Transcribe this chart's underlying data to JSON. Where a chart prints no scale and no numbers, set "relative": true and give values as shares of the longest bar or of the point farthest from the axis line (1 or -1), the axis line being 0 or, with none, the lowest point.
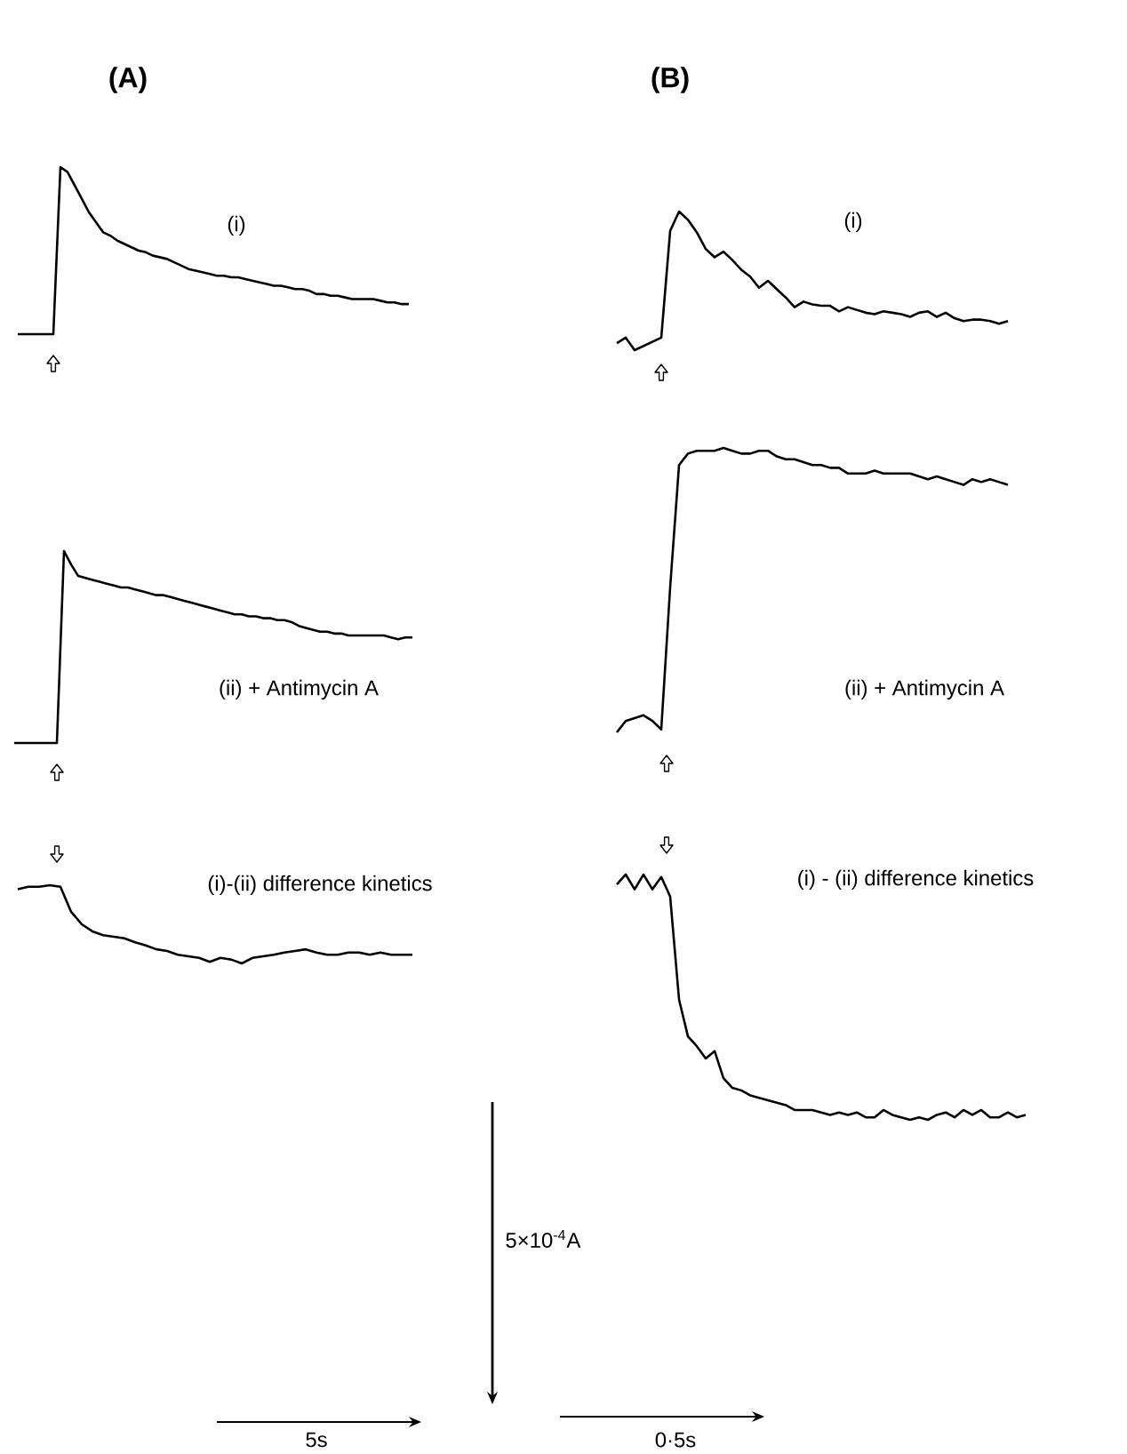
{
  "chart_data": [
    {
      "type": "line",
      "title": "(A)",
      "relative": true,
      "annotations": [
        "(i)"
      ],
      "categories": [
        null,
        null,
        null,
        null,
        null,
        null,
        null,
        null,
        null,
        null,
        null,
        null,
        null,
        null,
        null,
        null,
        null,
        null,
        null,
        null,
        null,
        null,
        null,
        null,
        null,
        null,
        null,
        null,
        null,
        null,
        null,
        null,
        null,
        null,
        null,
        null,
        null,
        null,
        null,
        null,
        null,
        null,
        null,
        null,
        null,
        null,
        null,
        null,
        null,
        null,
        null,
        null,
        null,
        null,
        null,
        null
      ],
      "series": [
        {
          "color": "#000000",
          "values": [
            0,
            0,
            0,
            0,
            0,
            0,
            1.0,
            0.97,
            0.89,
            0.81,
            0.73,
            0.67,
            0.61,
            0.59,
            0.56,
            0.54,
            0.52,
            0.5,
            0.49,
            0.47,
            0.46,
            0.45,
            0.43,
            0.41,
            0.39,
            0.38,
            0.37,
            0.36,
            0.35,
            0.35,
            0.34,
            0.34,
            0.33,
            0.32,
            0.31,
            0.3,
            0.29,
            0.29,
            0.28,
            0.27,
            0.27,
            0.26,
            0.24,
            0.24,
            0.23,
            0.23,
            0.22,
            0.21,
            0.21,
            0.21,
            0.21,
            0.2,
            0.19,
            0.19,
            0.18,
            0.18
          ]
        }
      ]
    },
    {
      "type": "line",
      "relative": true,
      "annotations": [
        "(ii) + Antimycin A"
      ],
      "categories": [
        null,
        null,
        null,
        null,
        null,
        null,
        null,
        null,
        null,
        null,
        null,
        null,
        null,
        null,
        null,
        null,
        null,
        null,
        null,
        null,
        null,
        null,
        null,
        null,
        null,
        null,
        null,
        null,
        null,
        null,
        null,
        null,
        null,
        null,
        null,
        null,
        null,
        null,
        null,
        null,
        null,
        null,
        null,
        null,
        null,
        null,
        null,
        null,
        null,
        null,
        null,
        null,
        null,
        null,
        null,
        null,
        null
      ],
      "series": [
        {
          "color": "#000000",
          "values": [
            0,
            0,
            0,
            0,
            0,
            0,
            0,
            1.0,
            0.93,
            0.87,
            0.86,
            0.85,
            0.84,
            0.83,
            0.82,
            0.81,
            0.81,
            0.8,
            0.79,
            0.78,
            0.77,
            0.77,
            0.76,
            0.75,
            0.74,
            0.73,
            0.72,
            0.71,
            0.7,
            0.69,
            0.68,
            0.67,
            0.67,
            0.66,
            0.66,
            0.65,
            0.65,
            0.64,
            0.64,
            0.63,
            0.61,
            0.6,
            0.59,
            0.58,
            0.58,
            0.57,
            0.57,
            0.56,
            0.56,
            0.56,
            0.56,
            0.56,
            0.56,
            0.55,
            0.54,
            0.55,
            0.55
          ]
        }
      ]
    },
    {
      "type": "line",
      "relative": true,
      "annotations": [
        "(i)-(ii) difference kinetics",
        "5×10$^{-4}$A",
        "5s"
      ],
      "categories": [
        null,
        null,
        null,
        null,
        null,
        null,
        null,
        null,
        null,
        null,
        null,
        null,
        null,
        null,
        null,
        null,
        null,
        null,
        null,
        null,
        null,
        null,
        null,
        null,
        null,
        null,
        null,
        null,
        null,
        null,
        null,
        null,
        null,
        null,
        null,
        null,
        null,
        null
      ],
      "series": [
        {
          "color": "#000000",
          "values": [
            0.95,
            0.98,
            0.98,
            1.0,
            0.98,
            0.66,
            0.5,
            0.41,
            0.36,
            0.34,
            0.32,
            0.27,
            0.23,
            0.18,
            0.16,
            0.11,
            0.09,
            0.07,
            0.02,
            0.07,
            0.05,
            0,
            0.07,
            0.09,
            0.11,
            0.14,
            0.16,
            0.18,
            0.14,
            0.11,
            0.11,
            0.14,
            0.14,
            0.11,
            0.14,
            0.11,
            0.11,
            0.11
          ]
        }
      ]
    },
    {
      "type": "line",
      "title": "(B)",
      "relative": true,
      "annotations": [
        "(i)"
      ],
      "categories": [
        null,
        null,
        null,
        null,
        null,
        null,
        null,
        null,
        null,
        null,
        null,
        null,
        null,
        null,
        null,
        null,
        null,
        null,
        null,
        null,
        null,
        null,
        null,
        null,
        null,
        null,
        null,
        null,
        null,
        null,
        null,
        null,
        null,
        null,
        null,
        null,
        null,
        null,
        null,
        null,
        null,
        null,
        null,
        null,
        null
      ],
      "series": [
        {
          "color": "#000000",
          "values": [
            0.05,
            0.09,
            0,
            0.03,
            0.06,
            0.09,
            0.86,
            1.0,
            0.94,
            0.85,
            0.73,
            0.67,
            0.71,
            0.65,
            0.58,
            0.53,
            0.45,
            0.5,
            0.44,
            0.38,
            0.31,
            0.35,
            0.33,
            0.32,
            0.32,
            0.28,
            0.31,
            0.29,
            0.27,
            0.26,
            0.28,
            0.27,
            0.26,
            0.24,
            0.27,
            0.28,
            0.24,
            0.27,
            0.23,
            0.21,
            0.22,
            0.22,
            0.21,
            0.19,
            0.21
          ]
        }
      ]
    },
    {
      "type": "line",
      "relative": true,
      "annotations": [
        "(ii) + Antimycin A"
      ],
      "categories": [
        null,
        null,
        null,
        null,
        null,
        null,
        null,
        null,
        null,
        null,
        null,
        null,
        null,
        null,
        null,
        null,
        null,
        null,
        null,
        null,
        null,
        null,
        null,
        null,
        null,
        null,
        null,
        null,
        null,
        null,
        null,
        null,
        null,
        null,
        null,
        null,
        null,
        null,
        null,
        null,
        null,
        null,
        null,
        null,
        null
      ],
      "series": [
        {
          "color": "#000000",
          "values": [
            0,
            0.04,
            0.05,
            0.06,
            0.04,
            0.01,
            0.51,
            0.94,
            0.98,
            0.99,
            0.99,
            0.99,
            1.0,
            0.99,
            0.98,
            0.98,
            0.99,
            0.99,
            0.97,
            0.96,
            0.96,
            0.95,
            0.94,
            0.94,
            0.93,
            0.93,
            0.91,
            0.91,
            0.91,
            0.92,
            0.91,
            0.91,
            0.91,
            0.91,
            0.9,
            0.89,
            0.9,
            0.89,
            0.88,
            0.87,
            0.89,
            0.88,
            0.89,
            0.88,
            0.87
          ]
        }
      ]
    },
    {
      "type": "line",
      "relative": true,
      "annotations": [
        "(i) - (ii) difference kinetics",
        "0·5s"
      ],
      "categories": [
        null,
        null,
        null,
        null,
        null,
        null,
        null,
        null,
        null,
        null,
        null,
        null,
        null,
        null,
        null,
        null,
        null,
        null,
        null,
        null,
        null,
        null,
        null,
        null,
        null,
        null,
        null,
        null,
        null,
        null,
        null,
        null,
        null,
        null,
        null,
        null,
        null,
        null,
        null,
        null,
        null,
        null,
        null,
        null,
        null,
        null,
        null
      ],
      "series": [
        {
          "color": "#000000",
          "values": [
            0.96,
            1.0,
            0.94,
            1.0,
            0.94,
            0.99,
            0.91,
            0.49,
            0.34,
            0.3,
            0.25,
            0.28,
            0.17,
            0.13,
            0.12,
            0.1,
            0.09,
            0.08,
            0.07,
            0.06,
            0.04,
            0.04,
            0.04,
            0.03,
            0.02,
            0.03,
            0.02,
            0.03,
            0.01,
            0.01,
            0.04,
            0.02,
            0.01,
            0,
            0.01,
            0,
            0.02,
            0.03,
            0.01,
            0.04,
            0.02,
            0.04,
            0.01,
            0.01,
            0.03,
            0.01,
            0.02
          ]
        }
      ]
    }
  ]
}
